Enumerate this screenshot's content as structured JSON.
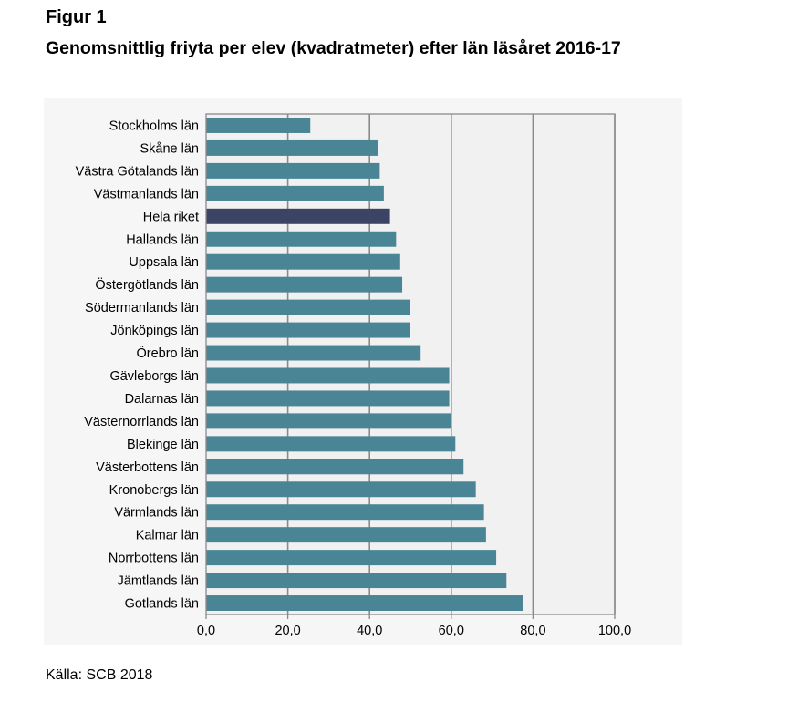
{
  "figure": {
    "label": "Figur 1",
    "title": "Genomsnittlig friyta per elev (kvadratmeter) efter län läsåret 2016-17",
    "source": "Källa: SCB 2018"
  },
  "colors": {
    "bar": "#4a8596",
    "highlight": "#3c4466",
    "plot_background": "#f1f1f1",
    "panel_background": "#f6f6f6",
    "gridline": "#8a8a8a"
  },
  "chart_data": {
    "type": "bar",
    "orientation": "horizontal",
    "categories": [
      "Stockholms län",
      "Skåne län",
      "Västra Götalands län",
      "Västmanlands län",
      "Hela riket",
      "Hallands län",
      "Uppsala län",
      "Östergötlands län",
      "Södermanlands län",
      "Jönköpings län",
      "Örebro län",
      "Gävleborgs län",
      "Dalarnas län",
      "Västernorrlands län",
      "Blekinge län",
      "Västerbottens län",
      "Kronobergs län",
      "Värmlands län",
      "Kalmar län",
      "Norrbottens län",
      "Jämtlands län",
      "Gotlands län"
    ],
    "values": [
      25.5,
      42,
      42.5,
      43.5,
      45,
      46.5,
      47.5,
      48,
      50,
      50,
      52.5,
      59.5,
      59.5,
      60,
      61,
      63,
      66,
      68,
      68.5,
      71,
      73.5,
      77.5
    ],
    "highlight": [
      "Hela riket"
    ],
    "xlim": [
      0,
      100
    ],
    "xticks": [
      0,
      20,
      40,
      60,
      80,
      100
    ],
    "xtick_labels": [
      "0,0",
      "20,0",
      "40,0",
      "60,0",
      "80,0",
      "100,0"
    ],
    "grid": "vertical",
    "legend": "none"
  }
}
